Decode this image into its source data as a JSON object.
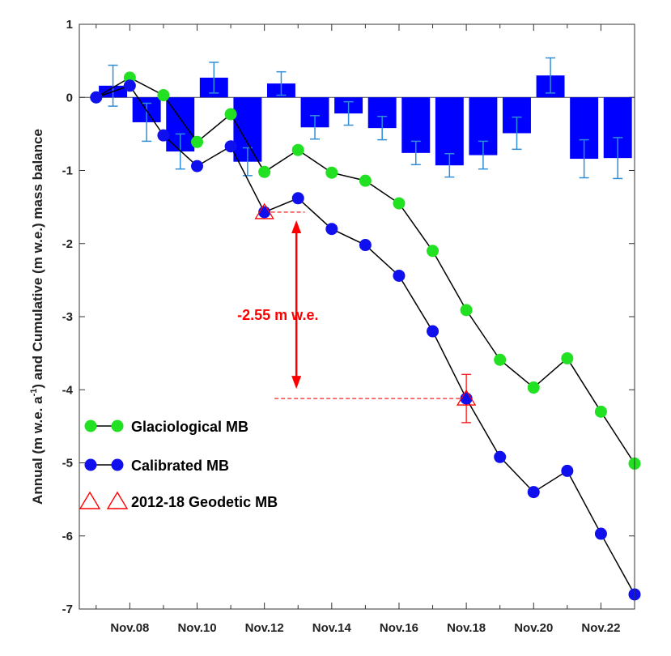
{
  "chart_data": {
    "type": "bar",
    "ylabel_parts": [
      "Annual (m w.e. a",
      "-1",
      ") and Cumulative (m w.e.) mass balance"
    ],
    "ylim": [
      -7,
      1
    ],
    "yticks": [
      1,
      0,
      -1,
      -2,
      -3,
      -4,
      -5,
      -6,
      -7
    ],
    "xlim": [
      2006.5,
      2023
    ],
    "xticks": [
      {
        "x": 2008,
        "label": "Nov.08"
      },
      {
        "x": 2010,
        "label": "Nov.10"
      },
      {
        "x": 2012,
        "label": "Nov.12"
      },
      {
        "x": 2014,
        "label": "Nov.14"
      },
      {
        "x": 2016,
        "label": "Nov.16"
      },
      {
        "x": 2018,
        "label": "Nov.18"
      },
      {
        "x": 2020,
        "label": "Nov.20"
      },
      {
        "x": 2022,
        "label": "Nov.22"
      }
    ],
    "minor_xticks": [
      2007,
      2009,
      2011,
      2013,
      2015,
      2017,
      2019,
      2021
    ],
    "annual_bars": {
      "x": [
        2007.5,
        2008.5,
        2009.5,
        2010.5,
        2011.5,
        2012.5,
        2013.5,
        2014.5,
        2015.5,
        2016.5,
        2017.5,
        2018.5,
        2019.5,
        2020.5,
        2021.5,
        2022.5
      ],
      "values": [
        0.16,
        -0.34,
        -0.74,
        0.27,
        -0.88,
        0.19,
        -0.41,
        -0.22,
        -0.42,
        -0.76,
        -0.93,
        -0.79,
        -0.49,
        0.3,
        -0.84,
        -0.83
      ],
      "errors": [
        0.28,
        0.26,
        0.24,
        0.21,
        0.19,
        0.16,
        0.16,
        0.16,
        0.16,
        0.16,
        0.16,
        0.19,
        0.22,
        0.24,
        0.26,
        0.28
      ],
      "color": "#0000ff",
      "error_color": "#2e8fd8"
    },
    "series": [
      {
        "name": "Glaciological MB",
        "color": "#22e022",
        "x": [
          2007,
          2008,
          2009,
          2010,
          2011,
          2012,
          2013,
          2014,
          2015,
          2016,
          2017,
          2018,
          2019,
          2020,
          2021,
          2022,
          2023
        ],
        "values": [
          0.0,
          0.27,
          0.03,
          -0.61,
          -0.23,
          -1.02,
          -0.72,
          -1.03,
          -1.14,
          -1.45,
          -2.1,
          -2.91,
          -3.59,
          -3.97,
          -3.57,
          -4.3,
          -5.01
        ]
      },
      {
        "name": "Calibrated MB",
        "color": "#1010ee",
        "x": [
          2007,
          2008,
          2009,
          2010,
          2011,
          2012,
          2013,
          2014,
          2015,
          2016,
          2017,
          2018,
          2019,
          2020,
          2021,
          2022,
          2023
        ],
        "values": [
          0.0,
          0.16,
          -0.52,
          -0.94,
          -0.67,
          -1.57,
          -1.38,
          -1.8,
          -2.02,
          -2.44,
          -3.2,
          -4.12,
          -4.92,
          -5.4,
          -5.11,
          -5.97,
          -6.8
        ]
      }
    ],
    "geodetic": {
      "name": "2012-18 Geodetic MB",
      "color": "#ff0000",
      "points": [
        {
          "x": 2012,
          "y": -1.57
        },
        {
          "x": 2018,
          "y": -4.12
        }
      ],
      "error": 0.33,
      "annotation": "-2.55 m w.e."
    },
    "legend_position": "bottom-left"
  }
}
